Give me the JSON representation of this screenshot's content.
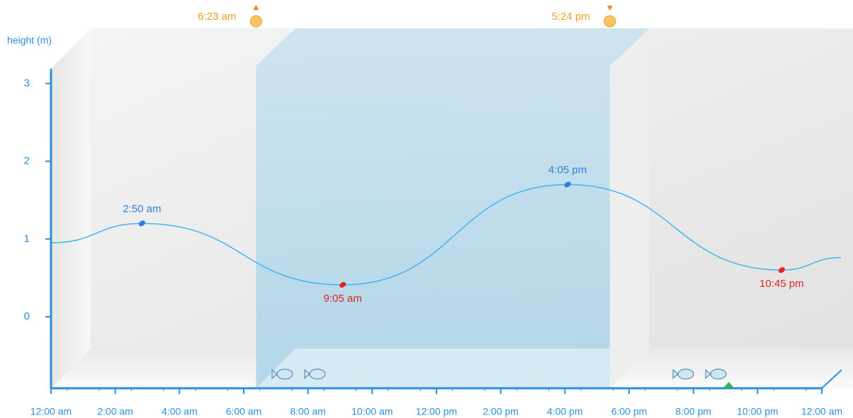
{
  "chart_data": {
    "type": "line",
    "y_label": "height (m)",
    "xlim": [
      0,
      24
    ],
    "xticks": [
      {
        "value": 0,
        "label": "12:00 am"
      },
      {
        "value": 2,
        "label": "2:00 am"
      },
      {
        "value": 4,
        "label": "4:00 am"
      },
      {
        "value": 6,
        "label": "6:00 am"
      },
      {
        "value": 8,
        "label": "8:00 am"
      },
      {
        "value": 10,
        "label": "10:00 am"
      },
      {
        "value": 12,
        "label": "12:00 pm"
      },
      {
        "value": 14,
        "label": "2:00 pm"
      },
      {
        "value": 16,
        "label": "4:00 pm"
      },
      {
        "value": 18,
        "label": "6:00 pm"
      },
      {
        "value": 20,
        "label": "8:00 pm"
      },
      {
        "value": 22,
        "label": "10:00 pm"
      },
      {
        "value": 24,
        "label": "12:00 am"
      }
    ],
    "ylim": [
      -0.92,
      3.19
    ],
    "yticks": [
      0,
      1,
      2,
      3
    ],
    "series": [
      {
        "color": "#3fb6f0",
        "x": [
          0,
          2.833,
          9.083,
          16.083,
          22.75,
          24.6
        ],
        "values": [
          0.95,
          1.2,
          0.41,
          1.7,
          0.6,
          0.76
        ]
      }
    ],
    "tides": [
      {
        "x": 2.833,
        "value": 1.2,
        "label": "2:50 am",
        "color": "#2f7fd8"
      },
      {
        "x": 9.083,
        "value": 0.41,
        "label": "9:05 am",
        "color": "#e02424"
      },
      {
        "x": 16.083,
        "value": 1.7,
        "label": "4:05 pm",
        "color": "#2f7fd8"
      },
      {
        "x": 22.75,
        "value": 0.6,
        "label": "10:45 pm",
        "color": "#e02424"
      }
    ],
    "sunrise": {
      "x": 6.383,
      "label": "6:23 am"
    },
    "sunset": {
      "x": 17.4,
      "label": "5:24 pm"
    },
    "now": 21.1
  }
}
